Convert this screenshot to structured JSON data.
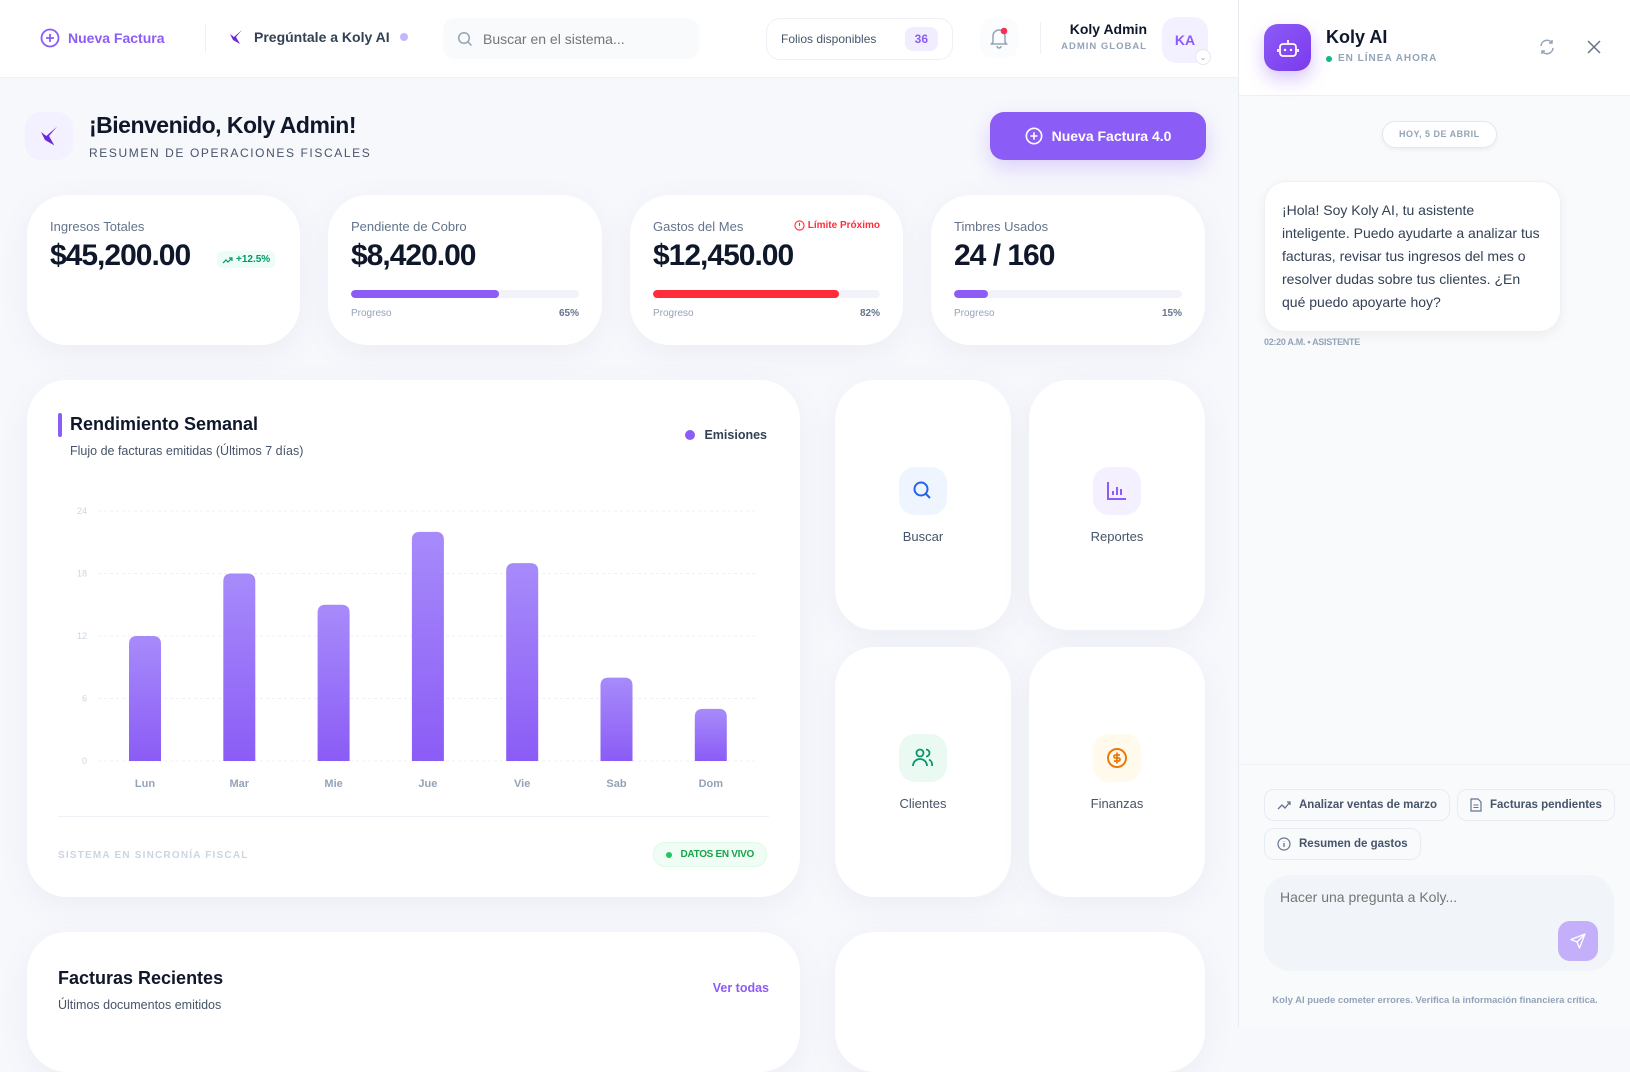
{
  "header": {
    "new_invoice": "Nueva Factura",
    "ask_ai": "Pregúntale a Koly AI",
    "search_placeholder": "Buscar en el sistema...",
    "folios_label": "Folios disponibles",
    "folios_count": "36",
    "user_name": "Koly Admin",
    "user_role": "ADMIN GLOBAL",
    "avatar_initials": "KA"
  },
  "welcome": {
    "title": "¡Bienvenido, Koly Admin!",
    "subtitle": "RESUMEN DE OPERACIONES FISCALES",
    "cta": "Nueva Factura 4.0"
  },
  "stats": [
    {
      "label": "Ingresos Totales",
      "value": "$45,200.00",
      "badge": "+12.5%"
    },
    {
      "label": "Pendiente de Cobro",
      "value": "$8,420.00",
      "progress_label": "Progreso",
      "progress": 65,
      "progress_text": "65%",
      "color": "#8b5cf6"
    },
    {
      "label": "Gastos del Mes",
      "value": "$12,450.00",
      "warning": "Límite Próximo",
      "progress_label": "Progreso",
      "progress": 82,
      "progress_text": "82%",
      "color": "#ff2d3a"
    },
    {
      "label": "Timbres Usados",
      "value": "24 / 160",
      "progress_label": "Progreso",
      "progress": 15,
      "progress_text": "15%",
      "color": "#8b5cf6"
    }
  ],
  "chart": {
    "title": "Rendimiento Semanal",
    "subtitle": "Flujo de facturas emitidas (Últimos 7 días)",
    "footer_status": "SISTEMA EN SINCRONÍA FISCAL",
    "live_badge": "DATOS EN VIVO"
  },
  "chart_data": {
    "type": "bar",
    "categories": [
      "Lun",
      "Mar",
      "Mie",
      "Jue",
      "Vie",
      "Sab",
      "Dom"
    ],
    "series": [
      {
        "name": "Emisiones",
        "values": [
          12,
          18,
          15,
          22,
          19,
          8,
          5
        ]
      }
    ],
    "yticks": [
      "0",
      "6",
      "12",
      "18",
      "24"
    ],
    "ylim": [
      0,
      24
    ],
    "grid": true,
    "legend": "top-right",
    "color": "#8b5cf6"
  },
  "quick_actions": [
    {
      "label": "Buscar",
      "icon": "search-icon",
      "color": "#2563eb",
      "bg": "#eef5ff"
    },
    {
      "label": "Reportes",
      "icon": "bar-chart-icon",
      "color": "#8b5cf6",
      "bg": "#f4f0ff"
    },
    {
      "label": "Clientes",
      "icon": "users-icon",
      "color": "#059669",
      "bg": "#eafaf3"
    },
    {
      "label": "Finanzas",
      "icon": "dollar-circle-icon",
      "color": "#ea7a0c",
      "bg": "#fffaeb"
    }
  ],
  "recent": {
    "title": "Facturas Recientes",
    "subtitle": "Últimos documentos emitidos",
    "view_all": "Ver todas"
  },
  "assistant": {
    "name": "Koly AI",
    "status": "EN LÍNEA AHORA",
    "date": "HOY, 5 DE ABRIL",
    "message": "¡Hola! Soy Koly AI, tu asistente inteligente. Puedo ayudarte a analizar tus facturas, revisar tus ingresos del mes o resolver dudas sobre tus clientes. ¿En qué puedo apoyarte hoy?",
    "meta": "02:20 A.M. • ASISTENTE",
    "suggestions": [
      "Analizar ventas de marzo",
      "Facturas pendientes",
      "Resumen de gastos"
    ],
    "input_placeholder": "Hacer una pregunta a Koly...",
    "disclaimer": "Koly AI puede cometer errores. Verifica la información financiera crítica."
  }
}
